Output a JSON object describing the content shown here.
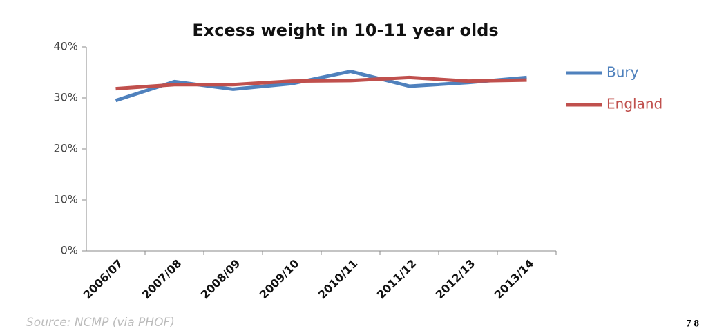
{
  "chart_data": {
    "type": "line",
    "title": "Excess weight in 10-11 year olds",
    "categories": [
      "2006/07",
      "2007/08",
      "2008/09",
      "2009/10",
      "2010/11",
      "2011/12",
      "2012/13",
      "2013/14"
    ],
    "series": [
      {
        "name": "Bury",
        "color": "#4f81bd",
        "values": [
          29.5,
          33.2,
          31.7,
          32.8,
          35.2,
          32.3,
          33.0,
          34.0
        ]
      },
      {
        "name": "England",
        "color": "#c0504d",
        "values": [
          31.8,
          32.6,
          32.6,
          33.3,
          33.4,
          34.0,
          33.3,
          33.5
        ]
      }
    ],
    "ylim": [
      0,
      40
    ],
    "yticks": [
      {
        "value": 0,
        "label": "0%"
      },
      {
        "value": 10,
        "label": "10%"
      },
      {
        "value": 20,
        "label": "20%"
      },
      {
        "value": 30,
        "label": "30%"
      },
      {
        "value": 40,
        "label": "40%"
      }
    ],
    "grid": false,
    "legend": "right",
    "source": "Source: NCMP (via PHOF)"
  },
  "page_number": "7 8"
}
